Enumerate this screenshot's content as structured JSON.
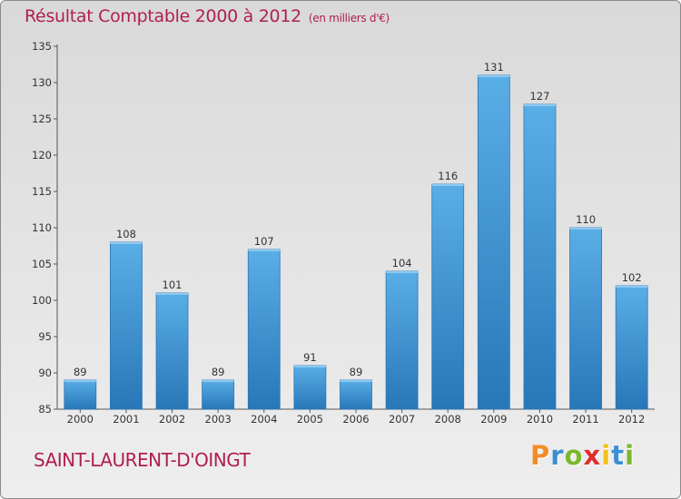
{
  "header": {
    "title": "Résultat Comptable 2000 à 2012",
    "unit": "(en milliers d'€)"
  },
  "footer": {
    "commune": "SAINT-LAURENT-D'OINGT",
    "brand_letters": [
      "P",
      "r",
      "o",
      "x",
      "i",
      "t",
      "i"
    ],
    "brand_colors": [
      "#f28c28",
      "#3a8fd4",
      "#7ab82e",
      "#e02d2d",
      "#f2c21a",
      "#3a8fd4",
      "#7ab82e"
    ]
  },
  "chart_data": {
    "type": "bar",
    "title": "Résultat Comptable 2000 à 2012",
    "xlabel": "",
    "ylabel": "",
    "categories": [
      "2000",
      "2001",
      "2002",
      "2003",
      "2004",
      "2005",
      "2006",
      "2007",
      "2008",
      "2009",
      "2010",
      "2011",
      "2012"
    ],
    "values": [
      89,
      108,
      101,
      89,
      107,
      91,
      89,
      104,
      116,
      131,
      127,
      110,
      102
    ],
    "ylim": [
      85,
      135
    ],
    "yticks": [
      85,
      90,
      95,
      100,
      105,
      110,
      115,
      120,
      125,
      130,
      135
    ],
    "grid": false,
    "bar_color": "#4a9fdc"
  }
}
